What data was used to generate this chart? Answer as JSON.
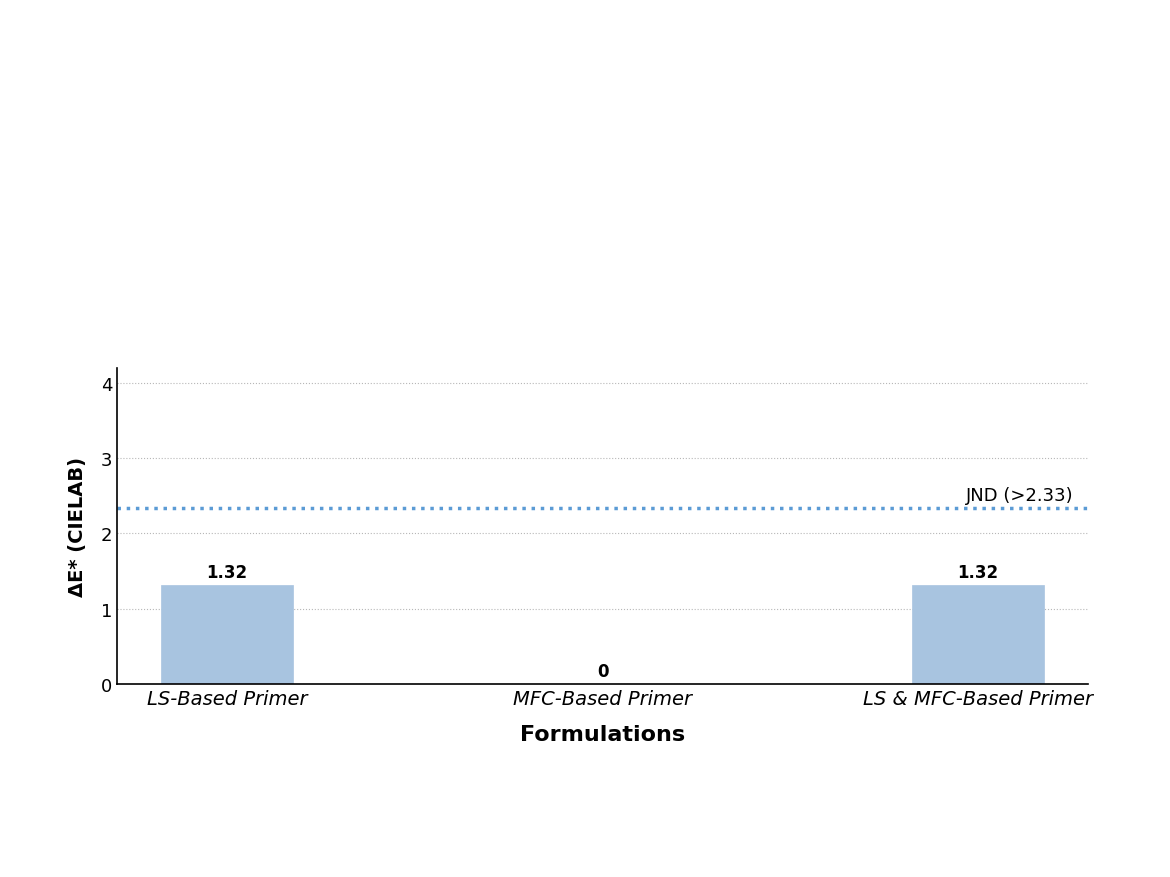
{
  "categories": [
    "LS-Based Primer",
    "MFC-Based Primer",
    "LS & MFC-Based Primer"
  ],
  "values": [
    1.32,
    0,
    1.32
  ],
  "bar_color": "#a8c4e0",
  "bar_edgecolor": "#a8c4e0",
  "jnd_value": 2.33,
  "jnd_label": "JND (>2.33)",
  "jnd_color": "#5b9bd5",
  "xlabel": "Formulations",
  "ylabel": "ΔE* (CIELAB)",
  "ylim": [
    0,
    4.2
  ],
  "yticks": [
    0,
    1,
    2,
    3,
    4
  ],
  "grid_color": "#b0b0b0",
  "background_color": "#ffffff",
  "bar_width": 0.35,
  "label_fontsize": 14,
  "tick_fontsize": 13,
  "annotation_fontsize": 12,
  "jnd_label_fontsize": 13
}
